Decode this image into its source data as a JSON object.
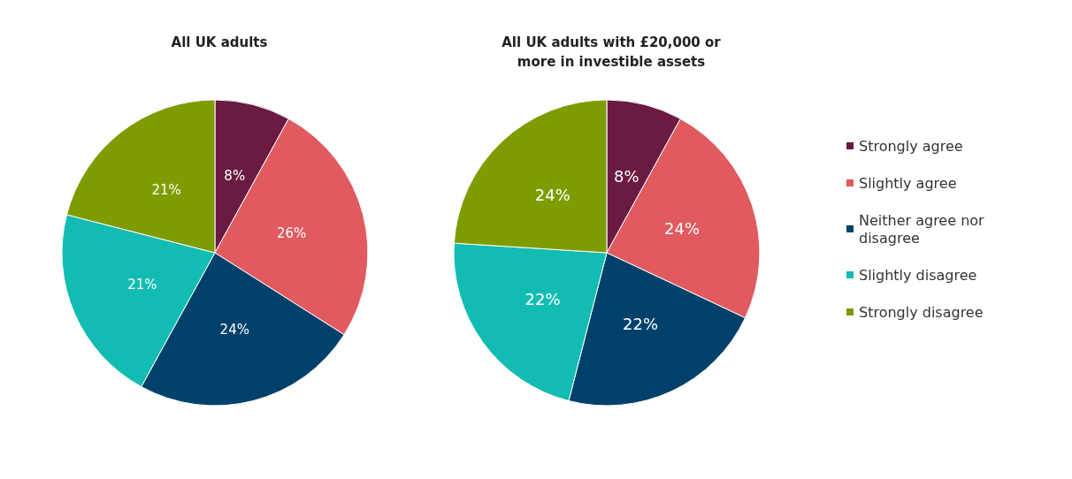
{
  "chart_data": {
    "type": "pie",
    "categories": [
      "Strongly agree",
      "Slightly agree",
      "Neither agree nor disagree",
      "Slightly disagree",
      "Strongly disagree"
    ],
    "colors": [
      "#6b1a41",
      "#e05a5f",
      "#00416b",
      "#12bcb2",
      "#7e9c00"
    ],
    "legend": "right",
    "series": [
      {
        "name": "All UK adults",
        "values": [
          8,
          26,
          24,
          21,
          21
        ],
        "value_labels": [
          "8%",
          "26%",
          "24%",
          "21%",
          "21%"
        ]
      },
      {
        "name": "All UK adults with £20,000 or\nmore in investible assets",
        "values": [
          8,
          24,
          22,
          22,
          24
        ],
        "value_labels": [
          "8%",
          "24%",
          "22%",
          "22%",
          "24%"
        ]
      }
    ]
  }
}
